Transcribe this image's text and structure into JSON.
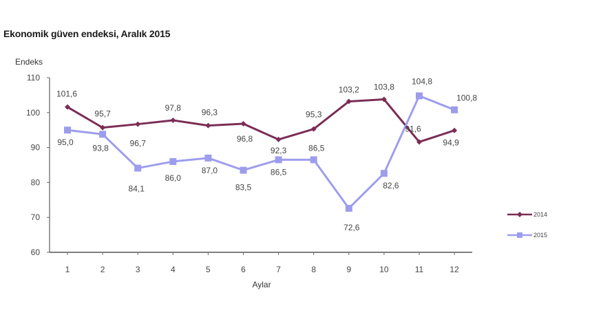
{
  "chart_data": {
    "type": "line",
    "title": "Ekonomik güven endeksi, Aralık 2015",
    "xlabel": "Aylar",
    "ylabel": "Endeks",
    "categories": [
      "1",
      "2",
      "3",
      "4",
      "5",
      "6",
      "7",
      "8",
      "9",
      "10",
      "11",
      "12"
    ],
    "ylim": [
      60,
      110
    ],
    "yticks": [
      60,
      70,
      80,
      90,
      100,
      110
    ],
    "grid": false,
    "legend_position": "right",
    "series": [
      {
        "name": "2014",
        "color": "#7b2d55",
        "values": [
          101.6,
          95.7,
          96.7,
          97.8,
          96.3,
          96.8,
          92.3,
          95.3,
          103.2,
          103.8,
          91.6,
          94.9
        ],
        "labels": [
          "101,6",
          "95,7",
          "96,7",
          "97,8",
          "96,3",
          "96,8",
          "92,3",
          "95,3",
          "103,2",
          "103,8",
          "91,6",
          "94,9"
        ]
      },
      {
        "name": "2015",
        "color": "#9d9ded",
        "values": [
          95.0,
          93.8,
          84.1,
          86.0,
          87.0,
          83.5,
          86.5,
          86.5,
          72.6,
          82.6,
          104.8,
          100.8
        ],
        "labels": [
          "95,0",
          "93,8",
          "84,1",
          "86,0",
          "87,0",
          "83,5",
          "86,5",
          "86,5",
          "72,6",
          "82,6",
          "104,8",
          "100,8"
        ]
      }
    ]
  }
}
